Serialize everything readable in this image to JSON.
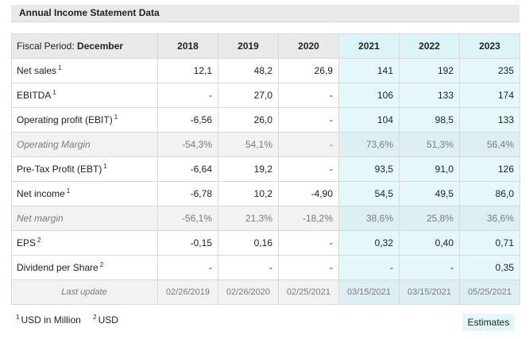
{
  "panel": {
    "title": "Annual Income Statement Data"
  },
  "table": {
    "period_label": "Fiscal Period: ",
    "period_value": "December",
    "years": [
      "2018",
      "2019",
      "2020",
      "2021",
      "2022",
      "2023"
    ],
    "estimate_years_start_index": 3,
    "rows": [
      {
        "label": "Net sales",
        "note": "1",
        "values": [
          "12,1",
          "48,2",
          "26,9",
          "141",
          "192",
          "235"
        ]
      },
      {
        "label": "EBITDA",
        "note": "1",
        "values": [
          "-",
          "27,0",
          "-",
          "106",
          "133",
          "174"
        ]
      },
      {
        "label": "Operating profit (EBIT)",
        "note": "1",
        "values": [
          "-6,56",
          "26,0",
          "-",
          "104",
          "98,5",
          "133"
        ]
      },
      {
        "label": "Operating Margin",
        "note": "",
        "sub": true,
        "values": [
          "-54,3%",
          "54,1%",
          "-",
          "73,6%",
          "51,3%",
          "56,4%"
        ]
      },
      {
        "label": "Pre-Tax Profit (EBT)",
        "note": "1",
        "values": [
          "-6,64",
          "19,2",
          "-",
          "93,5",
          "91,0",
          "126"
        ]
      },
      {
        "label": "Net income",
        "note": "1",
        "values": [
          "-6,78",
          "10,2",
          "-4,90",
          "54,5",
          "49,5",
          "86,0"
        ]
      },
      {
        "label": "Net margin",
        "note": "",
        "sub": true,
        "values": [
          "-56,1%",
          "21,3%",
          "-18,2%",
          "38,6%",
          "25,8%",
          "36,6%"
        ]
      },
      {
        "label": "EPS",
        "note": "2",
        "values": [
          "-0,15",
          "0,16",
          "-",
          "0,32",
          "0,40",
          "0,71"
        ]
      },
      {
        "label": "Dividend per Share",
        "note": "2",
        "values": [
          "-",
          "-",
          "-",
          "-",
          "-",
          "0,35"
        ]
      },
      {
        "label": "Last update",
        "note": "",
        "sub": true,
        "update": true,
        "values": [
          "02/26/2019",
          "02/26/2020",
          "02/25/2021",
          "03/15/2021",
          "03/15/2021",
          "05/25/2021"
        ]
      }
    ]
  },
  "footnotes": [
    {
      "mark": "1",
      "text": "USD in Million"
    },
    {
      "mark": "2",
      "text": "USD"
    }
  ],
  "estimates_button": {
    "label": "Estimates"
  },
  "colors": {
    "header_bg": "#e9e9e9",
    "estimate_bg": "#e4f8fb",
    "sub_row_bg": "#f2f2f2"
  }
}
